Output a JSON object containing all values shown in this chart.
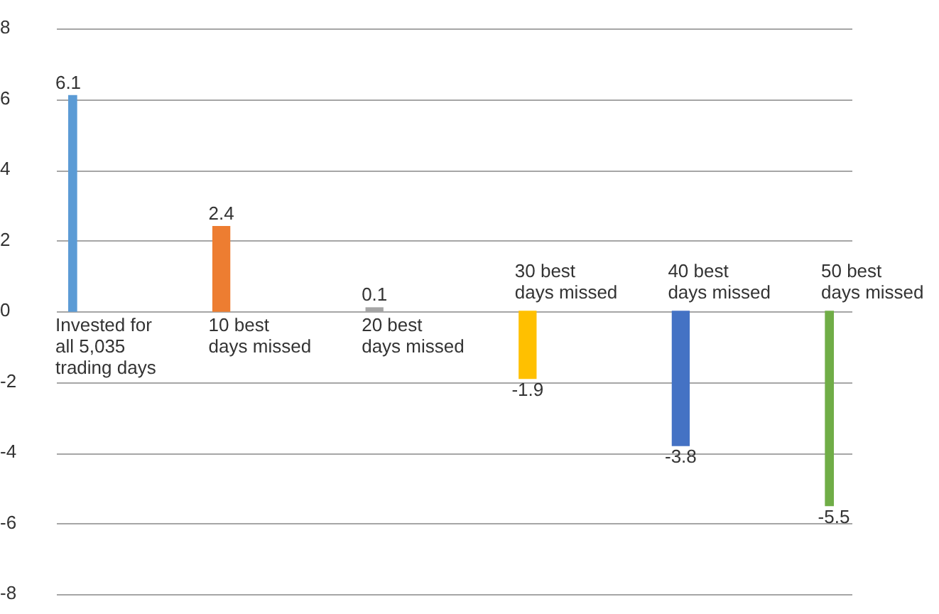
{
  "chart_data": {
    "type": "bar",
    "categories": [
      "Invested for all 5,035 trading days",
      "10 best days missed",
      "20 best days missed",
      "30 best days missed",
      "40 best days missed",
      "50 best days missed"
    ],
    "values": [
      6.1,
      2.4,
      0.1,
      -1.9,
      -3.8,
      -5.5
    ],
    "colors": [
      "#5b9bd5",
      "#ed7d31",
      "#a5a5a5",
      "#ffc000",
      "#4472c4",
      "#70ad47"
    ],
    "ylim": [
      -8,
      8
    ],
    "yticks": [
      -8,
      -6,
      -4,
      -2,
      0,
      2,
      4,
      6,
      8
    ],
    "grid": "y",
    "data_labels": true,
    "legend": false
  }
}
